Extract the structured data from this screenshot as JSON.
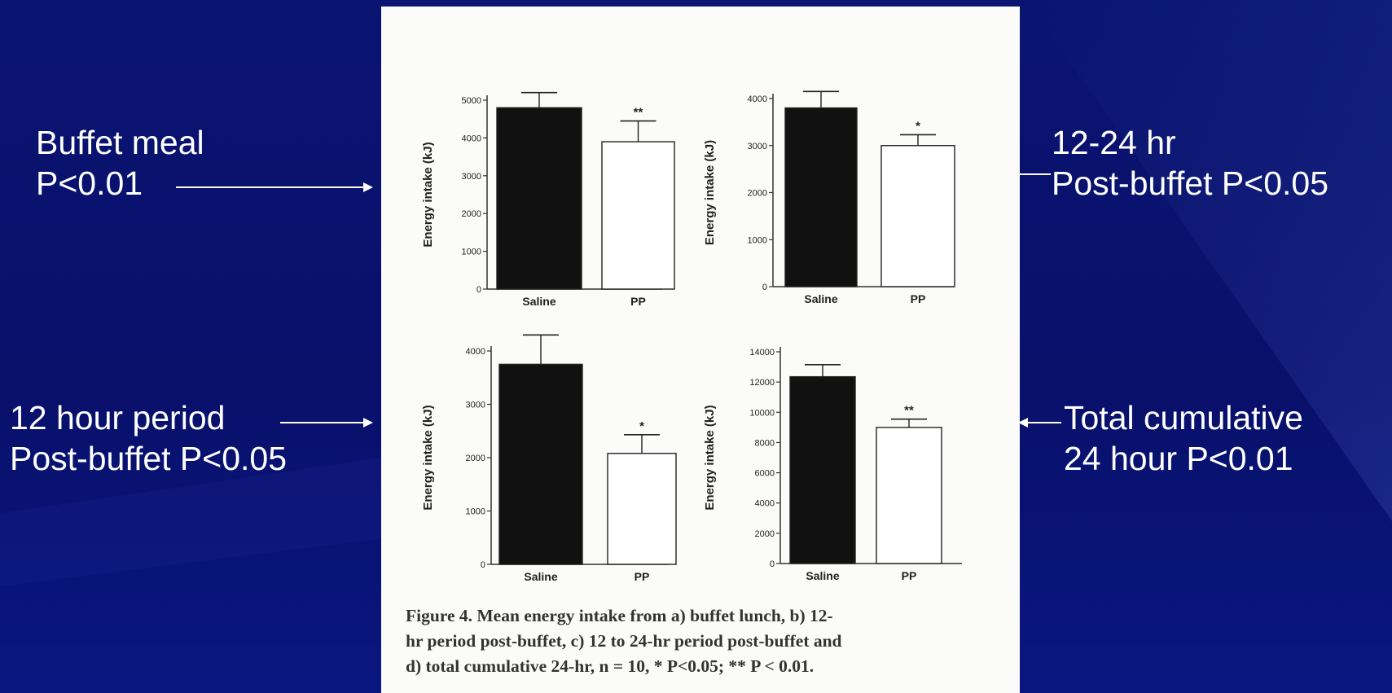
{
  "annotations": {
    "buffet": {
      "line1": "Buffet meal",
      "line2": "P<0.01"
    },
    "twelve_24": {
      "line1": "12-24 hr",
      "line2": "Post-buffet P<0.05"
    },
    "twelve_hour": {
      "line1": "12 hour period",
      "line2": "Post-buffet P<0.05"
    },
    "total": {
      "line1": "Total cumulative",
      "line2": "24 hour P<0.01"
    }
  },
  "caption": {
    "line1": "Figure 4.  Mean energy intake from a) buffet lunch, b) 12-",
    "line2": "hr period post-buffet, c) 12 to 24-hr period post-buffet and",
    "line3": "d) total cumulative 24-hr, n = 10, * P<0.05; ** P < 0.01."
  },
  "colors": {
    "background": "#0b1475",
    "panel": "#fbfbf9",
    "saline_bar": "#111111",
    "pp_bar": "#ffffff",
    "text": "#ffffff"
  },
  "chart_data": [
    {
      "type": "bar",
      "categories": [
        "Saline",
        "PP"
      ],
      "values": [
        4800,
        3900
      ],
      "error": [
        400,
        550
      ],
      "significance": [
        "",
        "**"
      ],
      "ylabel": "Energy intake (kJ)",
      "ylim": [
        0,
        5000
      ],
      "yticks": [
        0,
        1000,
        2000,
        3000,
        4000,
        5000
      ]
    },
    {
      "type": "bar",
      "categories": [
        "Saline",
        "PP"
      ],
      "values": [
        3800,
        3000
      ],
      "error": [
        350,
        230
      ],
      "significance": [
        "",
        "*"
      ],
      "ylabel": "Energy intake (kJ)",
      "ylim": [
        0,
        4000
      ],
      "yticks": [
        0,
        1000,
        2000,
        3000,
        4000
      ]
    },
    {
      "type": "bar",
      "categories": [
        "Saline",
        "PP"
      ],
      "values": [
        3750,
        2080
      ],
      "error": [
        550,
        350
      ],
      "significance": [
        "",
        "*"
      ],
      "ylabel": "Energy intake (kJ)",
      "ylim": [
        0,
        4000
      ],
      "yticks": [
        0,
        1000,
        2000,
        3000,
        4000
      ]
    },
    {
      "type": "bar",
      "categories": [
        "Saline",
        "PP"
      ],
      "values": [
        12350,
        9000
      ],
      "error": [
        800,
        550
      ],
      "significance": [
        "",
        "**"
      ],
      "ylabel": "Energy intake (kJ)",
      "ylim": [
        0,
        14000
      ],
      "yticks": [
        0,
        2000,
        4000,
        6000,
        8000,
        10000,
        12000,
        14000
      ]
    }
  ]
}
